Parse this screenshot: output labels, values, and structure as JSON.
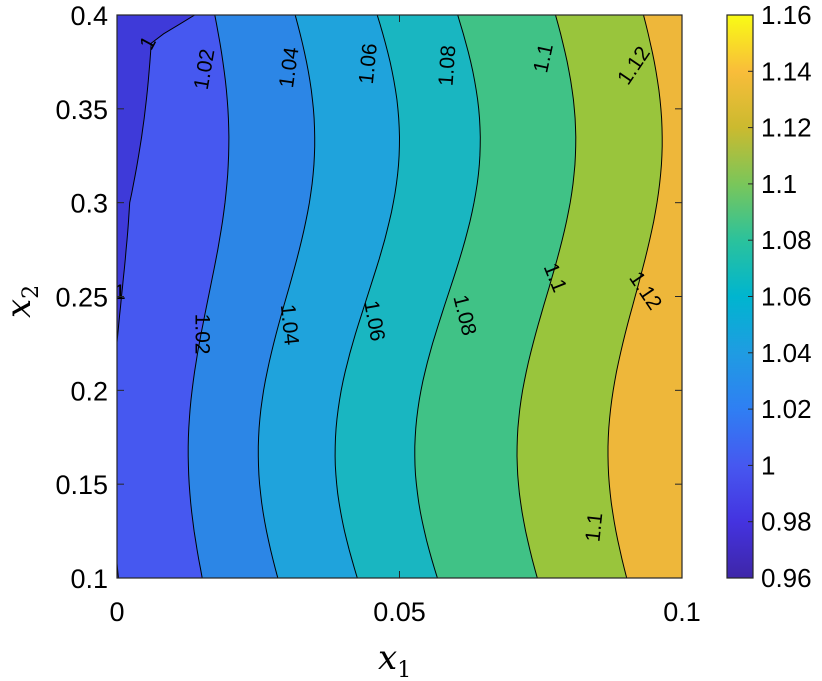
{
  "chart_data": {
    "type": "contour",
    "xlabel": "x",
    "xlabel_sub": "1",
    "ylabel": "x",
    "ylabel_sub": "2",
    "xlim": [
      0,
      0.1
    ],
    "ylim": [
      0.1,
      0.4
    ],
    "x_ticks": [
      "0",
      "0.05",
      "0.1"
    ],
    "y_ticks": [
      "0.1",
      "0.15",
      "0.2",
      "0.25",
      "0.3",
      "0.35",
      "0.4"
    ],
    "colorbar": {
      "range": [
        0.96,
        1.16
      ],
      "ticks": [
        "0.96",
        "0.98",
        "1",
        "1.02",
        "1.04",
        "1.06",
        "1.08",
        "1.1",
        "1.12",
        "1.14",
        "1.16"
      ],
      "colormap": "parula"
    },
    "levels": [
      {
        "value": 1.0,
        "label": "1",
        "color": "#4658f0"
      },
      {
        "value": 1.02,
        "label": "1.02",
        "color": "#2c86e6"
      },
      {
        "value": 1.04,
        "label": "1.04",
        "color": "#1fa3dc"
      },
      {
        "value": 1.06,
        "label": "1.06",
        "color": "#19b6c1"
      },
      {
        "value": 1.08,
        "label": "1.08",
        "color": "#40c286"
      },
      {
        "value": 1.1,
        "label": "1.1",
        "color": "#99c53c"
      },
      {
        "value": 1.12,
        "label": "1.12",
        "color": "#eeb73a"
      }
    ],
    "base_color": "#3e3ad9",
    "contour_labels": [
      {
        "text": "1",
        "x": 0.0055,
        "y": 0.385,
        "rot": -62
      },
      {
        "text": "1",
        "x": 0.0005,
        "y": 0.252,
        "rot": 0
      },
      {
        "text": "1.02",
        "x": 0.0155,
        "y": 0.371,
        "rot": -80
      },
      {
        "text": "1.02",
        "x": 0.015,
        "y": 0.23,
        "rot": 90
      },
      {
        "text": "1.04",
        "x": 0.0305,
        "y": 0.372,
        "rot": -82
      },
      {
        "text": "1.04",
        "x": 0.0305,
        "y": 0.235,
        "rot": 84
      },
      {
        "text": "1.06",
        "x": 0.0445,
        "y": 0.374,
        "rot": -84
      },
      {
        "text": "1.06",
        "x": 0.0455,
        "y": 0.237,
        "rot": 80
      },
      {
        "text": "1.08",
        "x": 0.0585,
        "y": 0.373,
        "rot": -86
      },
      {
        "text": "1.08",
        "x": 0.0615,
        "y": 0.24,
        "rot": 76
      },
      {
        "text": "1.1",
        "x": 0.0755,
        "y": 0.377,
        "rot": -78
      },
      {
        "text": "1.1",
        "x": 0.0775,
        "y": 0.26,
        "rot": 68
      },
      {
        "text": "1.1",
        "x": 0.0845,
        "y": 0.127,
        "rot": -84
      },
      {
        "text": "1.12",
        "x": 0.0915,
        "y": 0.373,
        "rot": -56
      },
      {
        "text": "1.12",
        "x": 0.0935,
        "y": 0.253,
        "rot": 56
      }
    ]
  }
}
